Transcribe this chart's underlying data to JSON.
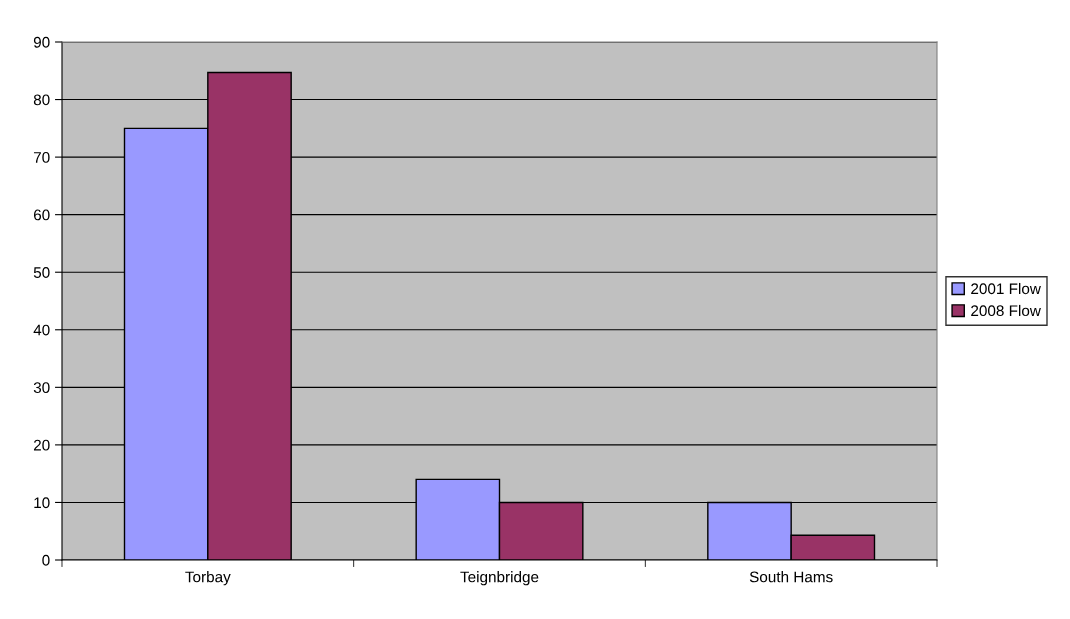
{
  "chart_data": {
    "type": "bar",
    "categories": [
      "Torbay",
      "Teignbridge",
      "South Hams"
    ],
    "series": [
      {
        "name": "2001 Flow",
        "color": "#9999ff",
        "values": [
          75,
          14,
          10
        ]
      },
      {
        "name": "2008 Flow",
        "color": "#993366",
        "values": [
          84.7,
          10,
          4.3
        ]
      }
    ],
    "ylim": [
      0,
      90
    ],
    "yticks": [
      0,
      10,
      20,
      30,
      40,
      50,
      60,
      70,
      80,
      90
    ],
    "grid": "y",
    "legend": "right"
  }
}
